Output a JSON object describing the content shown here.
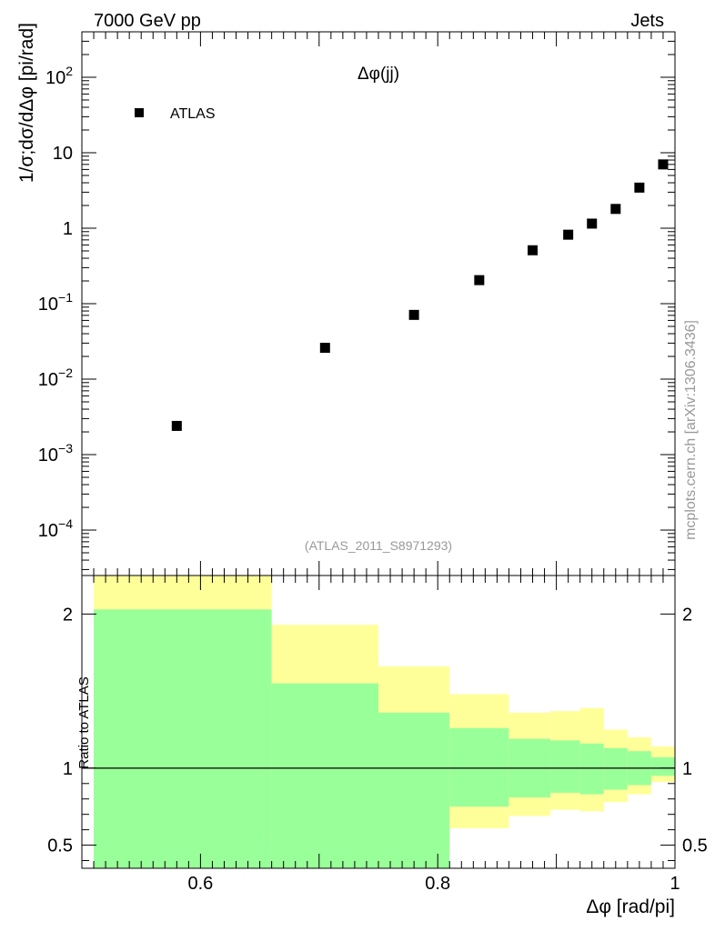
{
  "header": {
    "left": "7000 GeV pp",
    "right": "Jets"
  },
  "side_label": "mcplots.cern.ch [arXiv:1306.3436]",
  "analysis_id": "(ATLAS_2011_S8971293)",
  "colors": {
    "band_outer": "#ffff99",
    "band_inner": "#99ff99",
    "marker": "#000000"
  },
  "chart_data": [
    {
      "type": "scatter",
      "title": "Δφ(jj)",
      "xlabel": "Δφ [rad/pi]",
      "ylabel": "1/σ;dσ/dΔφ [pi/rad]",
      "yscale": "log",
      "xlim": [
        0.5,
        1.0
      ],
      "ylim": [
        2.5e-05,
        400
      ],
      "legend": {
        "label": "ATLAS",
        "position": "top-left"
      },
      "y_ticks": [
        "10^-4",
        "10^-3",
        "10^-2",
        "10^-1",
        "1",
        "10",
        "10^2"
      ],
      "series": [
        {
          "name": "ATLAS",
          "x": [
            0.58,
            0.705,
            0.78,
            0.835,
            0.88,
            0.91,
            0.93,
            0.95,
            0.97,
            0.99
          ],
          "y": [
            0.0024,
            0.026,
            0.071,
            0.205,
            0.51,
            0.82,
            1.15,
            1.8,
            3.45,
            7.0
          ]
        }
      ]
    },
    {
      "type": "area",
      "ylabel": "Ratio to ATLAS",
      "xlim": [
        0.5,
        1.0
      ],
      "ylim": [
        0.35,
        2.25
      ],
      "x_ticks": [
        "0.6",
        "0.8",
        "1"
      ],
      "y_ticks": [
        "0.5",
        "1",
        "2"
      ],
      "reference_line": 1,
      "bins": [
        {
          "lo": 0.51,
          "hi": 0.66,
          "inner_lo": 0.33,
          "inner_hi": 2.03,
          "outer_lo": 0.33,
          "outer_hi": 2.5
        },
        {
          "lo": 0.66,
          "hi": 0.75,
          "inner_lo": 0.33,
          "inner_hi": 1.55,
          "outer_lo": 0.55,
          "outer_hi": 1.93
        },
        {
          "lo": 0.75,
          "hi": 0.81,
          "inner_lo": 0.33,
          "inner_hi": 1.36,
          "outer_lo": 0.58,
          "outer_hi": 1.66
        },
        {
          "lo": 0.81,
          "hi": 0.86,
          "inner_lo": 0.75,
          "inner_hi": 1.26,
          "outer_lo": 0.61,
          "outer_hi": 1.48
        },
        {
          "lo": 0.86,
          "hi": 0.895,
          "inner_lo": 0.81,
          "inner_hi": 1.19,
          "outer_lo": 0.69,
          "outer_hi": 1.36
        },
        {
          "lo": 0.895,
          "hi": 0.92,
          "inner_lo": 0.84,
          "inner_hi": 1.18,
          "outer_lo": 0.73,
          "outer_hi": 1.37
        },
        {
          "lo": 0.92,
          "hi": 0.94,
          "inner_lo": 0.83,
          "inner_hi": 1.16,
          "outer_lo": 0.72,
          "outer_hi": 1.39
        },
        {
          "lo": 0.94,
          "hi": 0.96,
          "inner_lo": 0.86,
          "inner_hi": 1.13,
          "outer_lo": 0.78,
          "outer_hi": 1.25
        },
        {
          "lo": 0.96,
          "hi": 0.98,
          "inner_lo": 0.89,
          "inner_hi": 1.11,
          "outer_lo": 0.83,
          "outer_hi": 1.2
        },
        {
          "lo": 0.98,
          "hi": 1.0,
          "inner_lo": 0.95,
          "inner_hi": 1.07,
          "outer_lo": 0.91,
          "outer_hi": 1.14
        }
      ]
    }
  ]
}
